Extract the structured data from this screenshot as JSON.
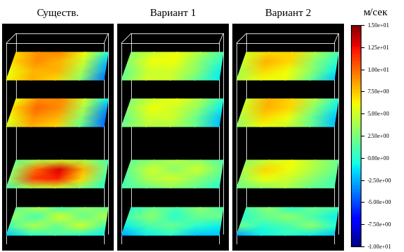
{
  "chart_data": [
    {
      "type": "heatmap",
      "title": "Существ.",
      "slices": [
        [
          [
            7,
            9,
            9,
            6,
            0
          ],
          [
            7,
            9,
            8,
            5,
            -2
          ],
          [
            6,
            8,
            8,
            4,
            -3
          ],
          [
            6,
            8,
            7,
            3,
            -4
          ]
        ],
        [
          [
            6,
            9,
            9,
            5,
            -1
          ],
          [
            7,
            10,
            9,
            4,
            -3
          ],
          [
            6,
            9,
            8,
            3,
            -4
          ],
          [
            5,
            8,
            7,
            2,
            -4
          ]
        ],
        [
          [
            2,
            4,
            5,
            4,
            1
          ],
          [
            3,
            10,
            13,
            8,
            2
          ],
          [
            3,
            11,
            12,
            7,
            1
          ],
          [
            1,
            4,
            5,
            3,
            0
          ]
        ],
        [
          [
            2,
            4,
            1,
            3,
            2
          ],
          [
            3,
            1,
            5,
            2,
            4
          ],
          [
            1,
            4,
            2,
            5,
            1
          ],
          [
            -2,
            0,
            1,
            0,
            -1
          ]
        ]
      ]
    },
    {
      "type": "heatmap",
      "title": "Вариант 1",
      "slices": [
        [
          [
            3,
            5,
            6,
            4,
            1
          ],
          [
            3,
            6,
            6,
            3,
            0
          ],
          [
            2,
            5,
            5,
            3,
            -1
          ],
          [
            2,
            5,
            5,
            2,
            -1
          ]
        ],
        [
          [
            3,
            5,
            6,
            4,
            0
          ],
          [
            3,
            6,
            5,
            3,
            -1
          ],
          [
            2,
            5,
            5,
            2,
            -2
          ],
          [
            2,
            4,
            4,
            2,
            -2
          ]
        ],
        [
          [
            2,
            3,
            4,
            3,
            1
          ],
          [
            2,
            5,
            3,
            5,
            2
          ],
          [
            1,
            4,
            5,
            3,
            1
          ],
          [
            1,
            2,
            3,
            2,
            0
          ]
        ],
        [
          [
            0,
            2,
            1,
            3,
            1
          ],
          [
            1,
            3,
            0,
            2,
            2
          ],
          [
            -1,
            1,
            2,
            0,
            -1
          ],
          [
            -3,
            -1,
            0,
            -2,
            -2
          ]
        ]
      ]
    },
    {
      "type": "heatmap",
      "title": "Вариант 2",
      "slices": [
        [
          [
            5,
            7,
            7,
            4,
            1
          ],
          [
            5,
            8,
            7,
            3,
            0
          ],
          [
            4,
            7,
            6,
            3,
            -1
          ],
          [
            4,
            6,
            6,
            2,
            -2
          ]
        ],
        [
          [
            5,
            8,
            7,
            4,
            0
          ],
          [
            5,
            8,
            7,
            3,
            -1
          ],
          [
            4,
            7,
            6,
            2,
            -2
          ],
          [
            3,
            6,
            5,
            2,
            -2
          ]
        ],
        [
          [
            3,
            5,
            6,
            4,
            2
          ],
          [
            4,
            7,
            6,
            4,
            2
          ],
          [
            3,
            6,
            5,
            3,
            1
          ],
          [
            2,
            3,
            4,
            2,
            1
          ]
        ],
        [
          [
            1,
            3,
            0,
            2,
            1
          ],
          [
            0,
            2,
            3,
            1,
            -1
          ],
          [
            2,
            0,
            1,
            3,
            0
          ],
          [
            -3,
            -1,
            0,
            -1,
            -2
          ]
        ]
      ]
    }
  ],
  "colorbar": {
    "label": "м/сек",
    "range": [
      -10,
      15
    ],
    "ticks": [
      {
        "value": -10,
        "label": "-1.00e+01"
      },
      {
        "value": -7.5,
        "label": "-7.50e+00"
      },
      {
        "value": -5,
        "label": "-5.00e+00"
      },
      {
        "value": -2.5,
        "label": "-2.50e+00"
      },
      {
        "value": 0,
        "label": "0.00e+00"
      },
      {
        "value": 2.5,
        "label": "2.50e+00"
      },
      {
        "value": 5,
        "label": "5.00e+00"
      },
      {
        "value": 7.5,
        "label": "7.50e+00"
      },
      {
        "value": 10,
        "label": "1.00e+01"
      },
      {
        "value": 12.5,
        "label": "1.25e+01"
      },
      {
        "value": 15,
        "label": "1.50e+01"
      }
    ]
  }
}
